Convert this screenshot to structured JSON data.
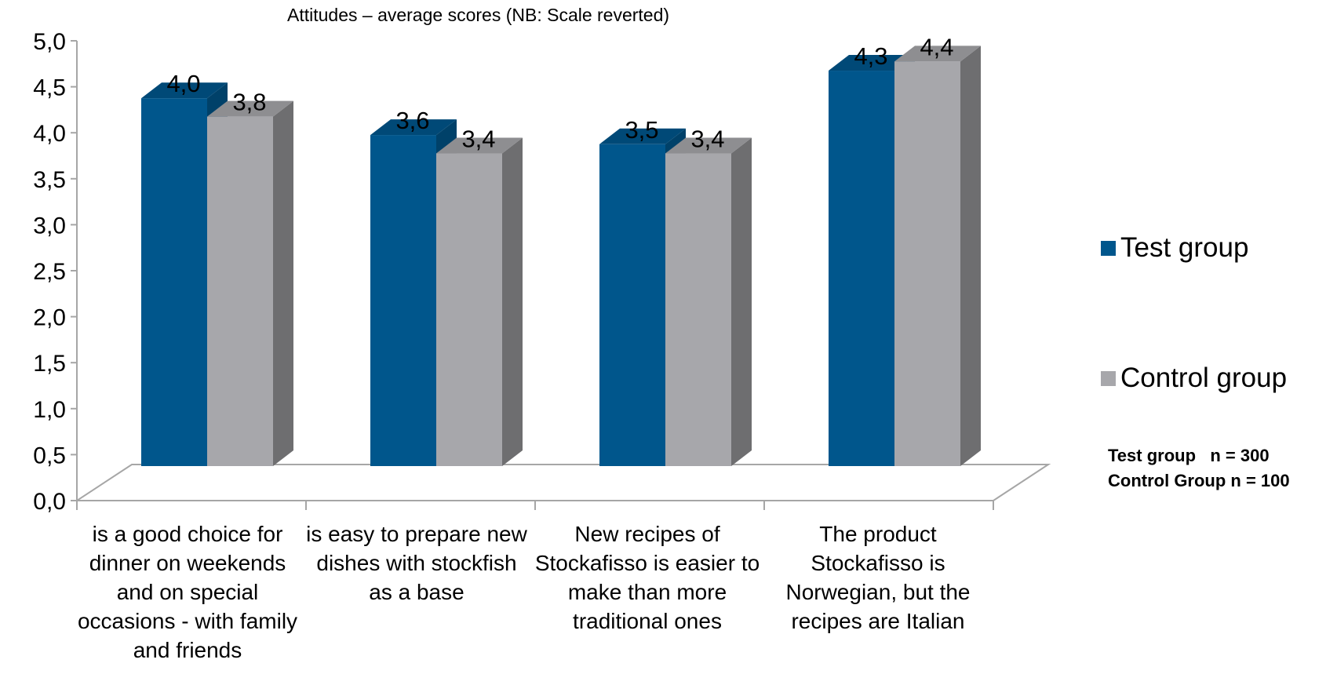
{
  "chart_data": {
    "type": "bar",
    "title": "Attitudes – average scores (NB: Scale reverted)",
    "categories": [
      "is a good choice for dinner on weekends and on special occasions - with family and friends",
      "is easy to prepare new dishes with stockfish as a base",
      "New recipes of Stockafisso is easier to make than more traditional ones",
      "The product Stockafisso is Norwegian, but the recipes are Italian"
    ],
    "series": [
      {
        "name": "Test group",
        "values": [
          4.0,
          3.6,
          3.5,
          4.3
        ],
        "labels": [
          "4,0",
          "3,6",
          "3,5",
          "4,3"
        ],
        "color": "#00568C"
      },
      {
        "name": "Control group",
        "values": [
          3.8,
          3.4,
          3.4,
          4.4
        ],
        "labels": [
          "3,8",
          "3,4",
          "3,4",
          "4,4"
        ],
        "color": "#A7A7AB"
      }
    ],
    "ylim": [
      0,
      5
    ],
    "yticks": [
      "0,0",
      "0,5",
      "1,0",
      "1,5",
      "2,0",
      "2,5",
      "3,0",
      "3,5",
      "4,0",
      "4,5",
      "5,0"
    ],
    "xlabel": "",
    "ylabel": "",
    "legend_position": "right",
    "grid": false,
    "style": "3d-clustered-column"
  },
  "note": {
    "line1": "Test group   n = 300",
    "line2": "Control Group n = 100"
  }
}
